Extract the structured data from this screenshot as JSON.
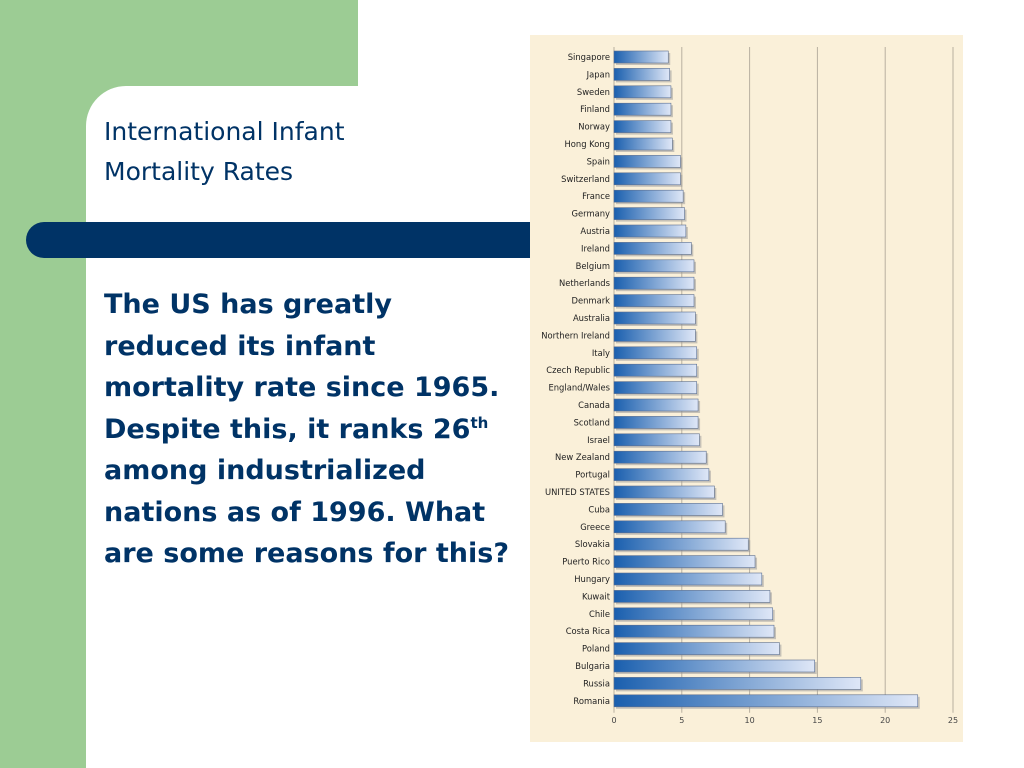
{
  "slide": {
    "title_line1": "International Infant",
    "title_line2": "Mortality Rates",
    "body_part1": "The US has greatly reduced its infant mortality rate since 1965. Despite this, it ranks 26",
    "body_sup": "th",
    "body_part2": " among industrialized nations as of 1996. What are some reasons for this?"
  },
  "colors": {
    "green": "#9ccc94",
    "navy": "#003366",
    "chart_bg": "#faf0d9",
    "bar_dark": "#1a5fae",
    "bar_light": "#dfe7f7"
  },
  "chart_data": {
    "type": "bar",
    "orientation": "horizontal",
    "title": "",
    "xlabel": "",
    "ylabel": "",
    "xlim": [
      0,
      25
    ],
    "x_ticks": [
      0,
      5,
      10,
      15,
      20,
      25
    ],
    "grid": "vertical",
    "categories": [
      "Singapore",
      "Japan",
      "Sweden",
      "Finland",
      "Norway",
      "Hong Kong",
      "Spain",
      "Switzerland",
      "France",
      "Germany",
      "Austria",
      "Ireland",
      "Belgium",
      "Netherlands",
      "Denmark",
      "Australia",
      "Northern Ireland",
      "Italy",
      "Czech Republic",
      "England/Wales",
      "Canada",
      "Scotland",
      "Israel",
      "New Zealand",
      "Portugal",
      "UNITED STATES",
      "Cuba",
      "Greece",
      "Slovakia",
      "Puerto Rico",
      "Hungary",
      "Kuwait",
      "Chile",
      "Costa Rica",
      "Poland",
      "Bulgaria",
      "Russia",
      "Romania"
    ],
    "values": [
      4.0,
      4.1,
      4.2,
      4.2,
      4.2,
      4.3,
      4.9,
      4.9,
      5.1,
      5.2,
      5.3,
      5.7,
      5.9,
      5.9,
      5.9,
      6.0,
      6.0,
      6.1,
      6.1,
      6.1,
      6.2,
      6.2,
      6.3,
      6.8,
      7.0,
      7.4,
      8.0,
      8.2,
      9.9,
      10.4,
      10.9,
      11.5,
      11.7,
      11.8,
      12.2,
      14.8,
      18.2,
      22.4
    ]
  }
}
